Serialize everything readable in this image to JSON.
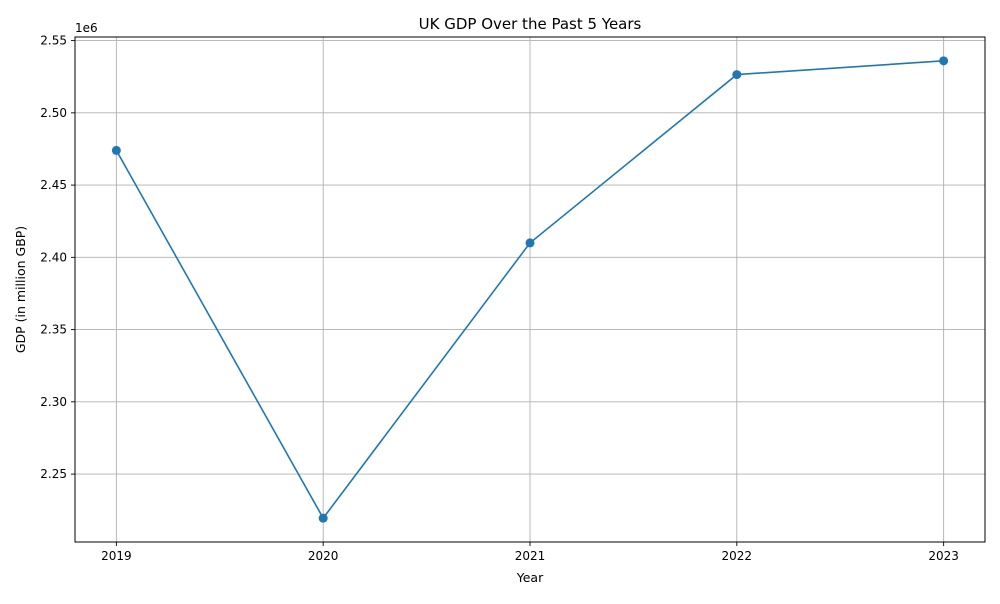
{
  "chart_data": {
    "type": "line",
    "title": "UK GDP Over the Past 5 Years",
    "xlabel": "Year",
    "ylabel": "GDP (in million GBP)",
    "y_offset_text": "1e6",
    "x": [
      2019,
      2020,
      2021,
      2022,
      2023
    ],
    "x_tick_labels": [
      "2019",
      "2020",
      "2021",
      "2022",
      "2023"
    ],
    "series": [
      {
        "values": [
          2474000,
          2219500,
          2410000,
          2526500,
          2536000
        ],
        "color": "#1f77b4",
        "marker": "circle"
      }
    ],
    "y_ticks": [
      2.25,
      2.3,
      2.35,
      2.4,
      2.45,
      2.5,
      2.55
    ],
    "y_tick_labels": [
      "2.25",
      "2.30",
      "2.35",
      "2.40",
      "2.45",
      "2.50",
      "2.55"
    ],
    "xlim": [
      2018.8,
      2023.2
    ],
    "ylim": [
      2203000,
      2552500
    ],
    "grid": true,
    "legend": "none"
  }
}
